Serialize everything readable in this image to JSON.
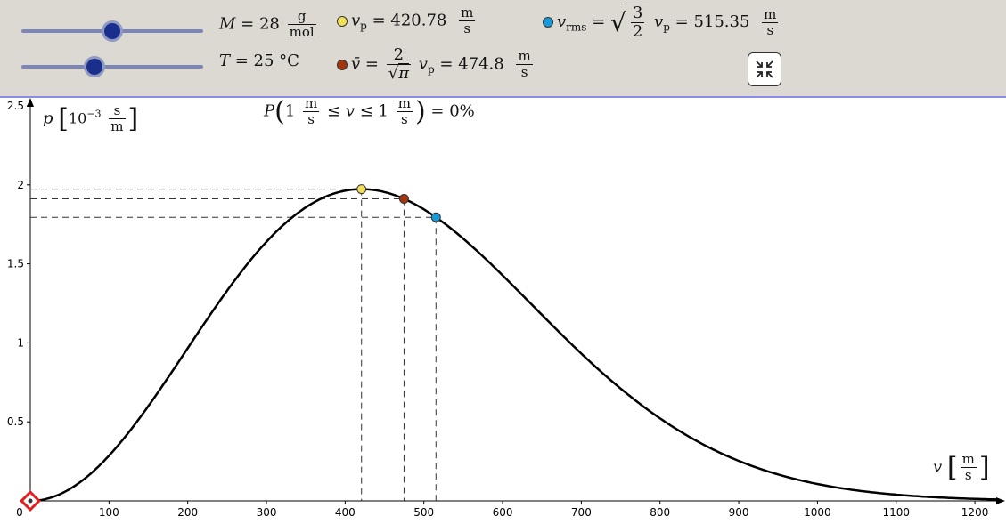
{
  "toolbar": {
    "M": {
      "symbol": "M",
      "eq": "= 28",
      "unit_num": "g",
      "unit_den": "mol",
      "slider_fraction": 0.5
    },
    "T": {
      "symbol": "T",
      "eq": "= 25 °C",
      "slider_fraction": 0.4
    },
    "vp": {
      "symbol": "v",
      "sub": "p",
      "eq": "= 420.78",
      "unit_num": "m",
      "unit_den": "s",
      "color": "#f4dd5a"
    },
    "vmean": {
      "symbol": "v̄",
      "eq1": "=",
      "frac_num": "2",
      "frac_den_sym": "π",
      "mid_sym": "v",
      "mid_sub": "p",
      "eq2": "= 474.8",
      "unit_num": "m",
      "unit_den": "s",
      "color": "#a3340c"
    },
    "vrms": {
      "symbol": "v",
      "sub": "rms",
      "eq1": "=",
      "frac_num": "3",
      "frac_den": "2",
      "mid_sym": "v",
      "mid_sub": "p",
      "eq2": "= 515.35",
      "unit_num": "m",
      "unit_den": "s",
      "color": "#1899d8"
    },
    "collapse_icon": "collapse-arrows-icon"
  },
  "probability_label": {
    "P": "P",
    "open": "(",
    "lower": "1",
    "lower_unit_num": "m",
    "lower_unit_den": "s",
    "mid": "≤ v ≤",
    "upper": "1",
    "upper_unit_num": "m",
    "upper_unit_den": "s",
    "close": ")",
    "eq": "= 0%"
  },
  "ylabel": {
    "symbol": "p",
    "prefix": "10",
    "exp": "−3",
    "unit_num": "s",
    "unit_den": "m"
  },
  "xlabel": {
    "symbol": "v",
    "unit_num": "m",
    "unit_den": "s"
  },
  "chart_data": {
    "type": "line",
    "title": "",
    "xlim": [
      0,
      1240
    ],
    "ylim": [
      0,
      2.5
    ],
    "x_ticks": [
      0,
      100,
      200,
      300,
      400,
      500,
      600,
      700,
      800,
      900,
      1000,
      1100,
      1200
    ],
    "y_ticks": [
      0.5,
      1,
      1.5,
      2,
      2.5
    ],
    "grid": false,
    "series": [
      {
        "name": "",
        "function": "maxwell_boltzmann",
        "vp": 420.78,
        "color": "#000000"
      }
    ],
    "markers": [
      {
        "name": "vp",
        "x": 420.78,
        "y": 1.97,
        "color": "#f4dd5a"
      },
      {
        "name": "v_mean",
        "x": 474.8,
        "y": 1.91,
        "color": "#a3340c"
      },
      {
        "name": "v_rms",
        "x": 515.35,
        "y": 1.8,
        "color": "#1899d8"
      }
    ],
    "origin_marker_color": "#e02020"
  }
}
